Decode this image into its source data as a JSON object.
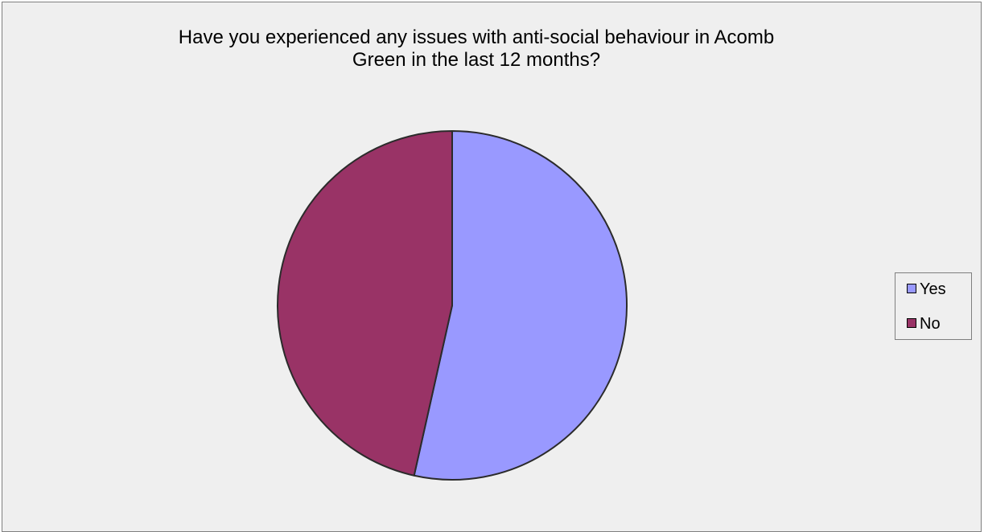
{
  "chart_data": {
    "type": "pie",
    "title_lines": [
      "Have you experienced any issues with anti-social behaviour in Acomb",
      "Green in the last 12 months?"
    ],
    "categories": [
      "Yes",
      "No"
    ],
    "values": [
      53.5,
      46.5
    ],
    "colors": [
      "#9999ff",
      "#993366"
    ],
    "slice_outline_color": "#2b2b2b",
    "start_angle_deg": 0,
    "direction": "clockwise",
    "legend_position": "right"
  }
}
